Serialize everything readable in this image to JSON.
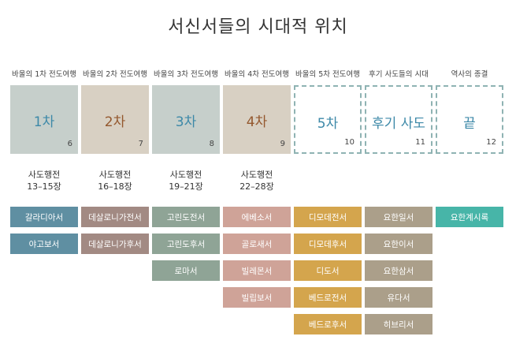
{
  "title": "서신서들의 시대적 위치",
  "colors": {
    "teal_box": "#c6cfcb",
    "teal_text": "#3d89a8",
    "beige_box": "#d8d0c3",
    "brown_text": "#94582e",
    "dashed_border": "#8fb3b3",
    "book_teal": "#5f8fa2",
    "book_mauve": "#a28a83",
    "book_sage": "#8fa496",
    "book_pink": "#cfa398",
    "book_gold": "#d4a54d",
    "book_olive": "#ab9f8a",
    "book_green": "#47b5a8"
  },
  "columns": [
    {
      "label": "바울의 1차 전도여행",
      "box_text": "1차",
      "number": "6",
      "style": "teal",
      "section": [
        "사도행전",
        "13–15장"
      ],
      "books": [
        "갈라디아서",
        "야고보서"
      ],
      "book_color": "teal"
    },
    {
      "label": "바울의 2차 전도여행",
      "box_text": "2차",
      "number": "7",
      "style": "beige",
      "section": [
        "사도행전",
        "16–18장"
      ],
      "books": [
        "데살로니가전서",
        "데살로니가후서"
      ],
      "book_color": "mauve"
    },
    {
      "label": "바울의 3차 전도여행",
      "box_text": "3차",
      "number": "8",
      "style": "teal",
      "section": [
        "사도행전",
        "19–21장"
      ],
      "books": [
        "고린도전서",
        "고린도후서",
        "로마서"
      ],
      "book_color": "sage"
    },
    {
      "label": "바울의 4차 전도여행",
      "box_text": "4차",
      "number": "9",
      "style": "beige",
      "section": [
        "사도행전",
        "22–28장"
      ],
      "books": [
        "에베소서",
        "골로새서",
        "빌레몬서",
        "빌립보서"
      ],
      "book_color": "pink"
    },
    {
      "label": "바울의 5차 전도여행",
      "box_text": "5차",
      "number": "10",
      "style": "dashed",
      "section": [],
      "books": [
        "디모데전서",
        "디모데후서",
        "디도서",
        "베드로전서",
        "베드로후서"
      ],
      "book_color": "gold"
    },
    {
      "label": "후기 사도들의 시대",
      "box_text": "후기 사도",
      "number": "11",
      "style": "dashed",
      "section": [],
      "books": [
        "요한일서",
        "요한이서",
        "요한삼서",
        "유다서",
        "히브리서"
      ],
      "book_color": "olive"
    },
    {
      "label": "역사의 종결",
      "box_text": "끝",
      "number": "12",
      "style": "dashed",
      "section": [],
      "books": [
        "요한계시록"
      ],
      "book_color": "green"
    }
  ]
}
